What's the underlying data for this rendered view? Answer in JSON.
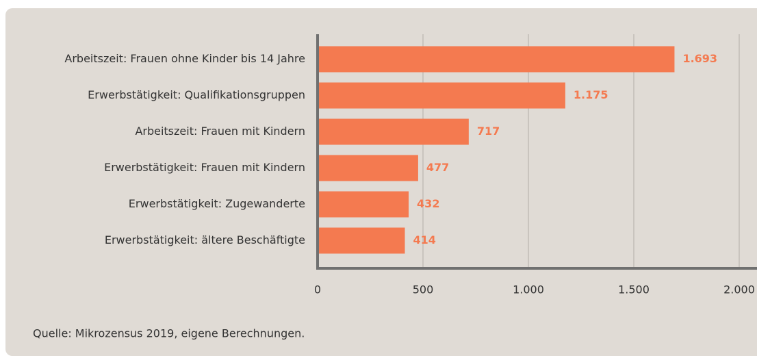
{
  "chart_data": {
    "type": "bar",
    "orientation": "horizontal",
    "categories": [
      "Arbeitszeit: Frauen ohne Kinder bis 14 Jahre",
      "Erwerbstätigkeit: Qualifikationsgruppen",
      "Arbeitszeit: Frauen mit Kindern",
      "Erwerbstätigkeit: Frauen mit Kindern",
      "Erwerbstätigkeit: Zugewanderte",
      "Erwerbstätigkeit: ältere Beschäftigte"
    ],
    "values": [
      1693,
      1175,
      717,
      477,
      432,
      414
    ],
    "value_labels": [
      "1.693",
      "1.175",
      "717",
      "477",
      "432",
      "414"
    ],
    "color": "#f47a50",
    "xlim": [
      0,
      2000
    ],
    "xticks": [
      0,
      500,
      {
        "value": 1000,
        "label": "1.000"
      },
      {
        "value": 1500,
        "label": "1.500"
      },
      {
        "value": 2000,
        "label": "2.000"
      }
    ],
    "grid": true,
    "source": "Quelle: Mikrozensus 2019, eigene Berechnungen."
  }
}
